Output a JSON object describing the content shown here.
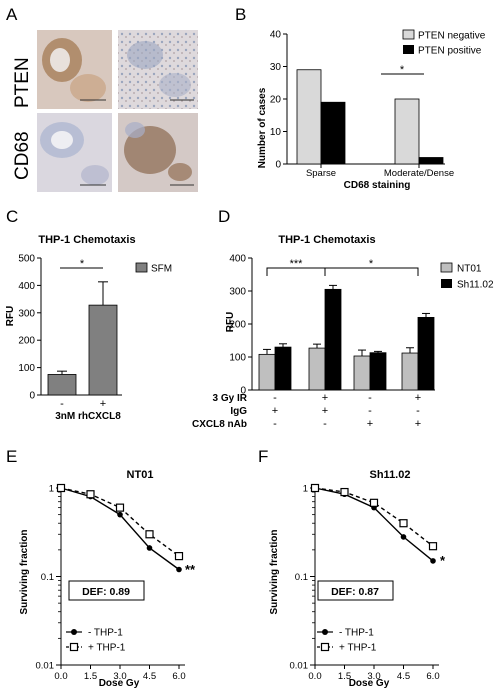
{
  "figure": {
    "panel_letters": [
      "A",
      "B",
      "C",
      "D",
      "E",
      "F"
    ]
  },
  "panelA": {
    "row_labels": [
      "PTEN",
      "CD68"
    ]
  },
  "chart_data": [
    {
      "panel": "B",
      "type": "bar",
      "xlabel": "CD68 staining",
      "ylabel": "Number of cases",
      "categories": [
        "Sparse",
        "Moderate/Dense"
      ],
      "series": [
        {
          "name": "PTEN negative",
          "values": [
            29,
            20
          ],
          "color": "#d9d9d9"
        },
        {
          "name": "PTEN positive",
          "values": [
            19,
            2
          ],
          "color": "#000000"
        }
      ],
      "ylim": [
        0,
        40
      ],
      "yticks": [
        0,
        10,
        20,
        30,
        40
      ],
      "legend": "top-right",
      "significance": [
        {
          "label": "*",
          "category": "Moderate/Dense"
        }
      ]
    },
    {
      "panel": "C",
      "type": "bar",
      "title": "THP-1 Chemotaxis",
      "xlabel": "3nM rhCXCL8",
      "ylabel": "RFU",
      "categories": [
        "-",
        "+"
      ],
      "series": [
        {
          "name": "SFM",
          "values": [
            75,
            328
          ],
          "errors": [
            12,
            85
          ],
          "color": "#808080"
        }
      ],
      "ylim": [
        0,
        500
      ],
      "yticks": [
        0,
        100,
        200,
        300,
        400,
        500
      ],
      "legend": "top-right",
      "significance": [
        {
          "label": "*"
        }
      ]
    },
    {
      "panel": "D",
      "type": "bar",
      "title": "THP-1 Chemotaxis",
      "ylabel": "RFU",
      "groups": 4,
      "series": [
        {
          "name": "NT01",
          "values": [
            108,
            127,
            103,
            112
          ],
          "errors": [
            15,
            12,
            18,
            16
          ],
          "color": "#bfbfbf"
        },
        {
          "name": "Sh11.02",
          "values": [
            130,
            305,
            113,
            220
          ],
          "errors": [
            10,
            12,
            4,
            12
          ],
          "color": "#000000"
        }
      ],
      "ylim": [
        0,
        400
      ],
      "yticks": [
        0,
        100,
        200,
        300,
        400
      ],
      "legend": "top-right",
      "treatment_rows": [
        {
          "label": "3 Gy IR",
          "values": [
            "-",
            "+",
            "-",
            "+"
          ]
        },
        {
          "label": "IgG",
          "values": [
            "+",
            "+",
            "-",
            "-"
          ]
        },
        {
          "label": "CXCL8 nAb",
          "values": [
            "-",
            "-",
            "+",
            "+"
          ]
        }
      ],
      "significance": [
        {
          "label": "***"
        },
        {
          "label": "*"
        }
      ]
    },
    {
      "panel": "E",
      "type": "line",
      "title": "NT01",
      "xlabel": "Dose Gy",
      "ylabel": "Surviving fraction",
      "x": [
        0,
        1.5,
        3.0,
        4.5,
        6.0
      ],
      "xtick_labels": [
        "0.0",
        "1.5",
        "3.0",
        "4.5",
        "6.0"
      ],
      "yscale": "log",
      "ylim": [
        0.01,
        1
      ],
      "ytick_labels": [
        "0.01",
        "0.1",
        "1"
      ],
      "series": [
        {
          "name": "- THP-1",
          "values": [
            1.0,
            0.8,
            0.5,
            0.21,
            0.12
          ]
        },
        {
          "name": "+ THP-1",
          "values": [
            1.0,
            0.85,
            0.6,
            0.3,
            0.17
          ]
        }
      ],
      "annotation": "DEF: 0.89",
      "significance": "**",
      "legend": "bottom-left"
    },
    {
      "panel": "F",
      "type": "line",
      "title": "Sh11.02",
      "xlabel": "Dose Gy",
      "ylabel": "Surviving fraction",
      "x": [
        0,
        1.5,
        3.0,
        4.5,
        6.0
      ],
      "xtick_labels": [
        "0.0",
        "1.5",
        "3.0",
        "4.5",
        "6.0"
      ],
      "yscale": "log",
      "ylim": [
        0.01,
        1
      ],
      "ytick_labels": [
        "0.01",
        "0.1",
        "1"
      ],
      "series": [
        {
          "name": "- THP-1",
          "values": [
            1.0,
            0.85,
            0.6,
            0.28,
            0.15
          ]
        },
        {
          "name": "+ THP-1",
          "values": [
            1.0,
            0.9,
            0.68,
            0.4,
            0.22
          ]
        }
      ],
      "annotation": "DEF: 0.87",
      "significance": "*",
      "legend": "bottom-left"
    }
  ]
}
